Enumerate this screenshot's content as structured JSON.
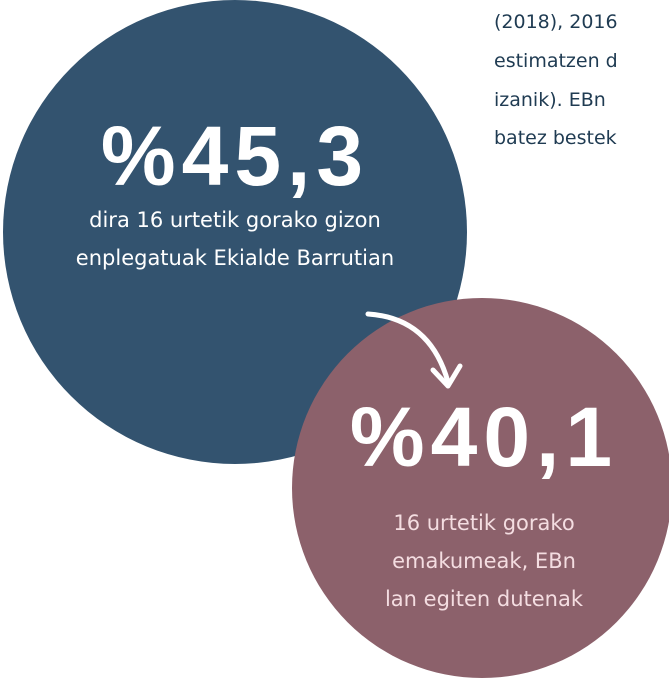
{
  "intro_text": [
    "(2018), 2016",
    "estimatzen d",
    "izanik). EBn",
    "batez bestek"
  ],
  "stats": [
    {
      "value": "%45,3",
      "description": [
        "dira 16 urtetik gorako gizon",
        "enplegatuak Ekialde Barrutian"
      ]
    },
    {
      "value": "%40,1",
      "description": [
        "16 urtetik gorako",
        "emakumeak, EBn",
        "lan egiten dutenak"
      ]
    }
  ]
}
